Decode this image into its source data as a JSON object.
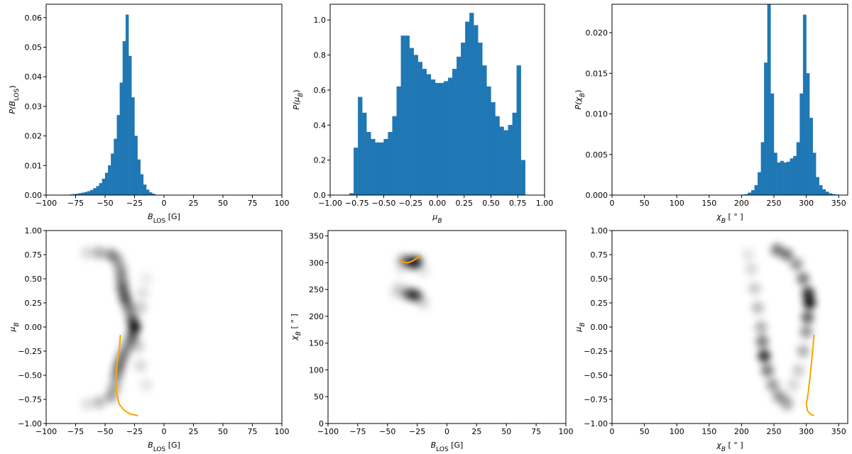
{
  "chart_data": [
    {
      "type": "histogram",
      "color": "#1f77b4",
      "xlabel": [
        "B",
        "LOS",
        " [G]"
      ],
      "ylabel": [
        "P(B",
        "LOS",
        ")"
      ],
      "xlim": [
        -100,
        100
      ],
      "ylim": [
        0,
        0.0645
      ],
      "xticks": [
        {
          "value": -100,
          "label": "−100"
        },
        {
          "value": -75,
          "label": "−75"
        },
        {
          "value": -50,
          "label": "−50"
        },
        {
          "value": -25,
          "label": "−25"
        },
        0,
        25,
        50,
        75,
        100
      ],
      "yticks": [
        {
          "value": 0,
          "label": "0.00"
        },
        {
          "value": 0.01,
          "label": "0.01"
        },
        {
          "value": 0.02,
          "label": "0.02"
        },
        {
          "value": 0.03,
          "label": "0.03"
        },
        {
          "value": 0.04,
          "label": "0.04"
        },
        {
          "value": 0.05,
          "label": "0.05"
        },
        {
          "value": 0.06,
          "label": "0.06"
        }
      ],
      "bins": [
        -80,
        -77.5,
        -75,
        -72.5,
        -70,
        -67.5,
        -65,
        -62.5,
        -60,
        -57.5,
        -55,
        -52.5,
        -50,
        -47.5,
        -45,
        -42.5,
        -40,
        -37.5,
        -35,
        -32.5,
        -30,
        -27.5,
        -25,
        -22.5,
        -20,
        -17.5,
        -15,
        -12.5,
        -10,
        -7.5,
        -5
      ],
      "values": [
        0.0002,
        0.0003,
        0.0004,
        0.0006,
        0.0008,
        0.001,
        0.0013,
        0.0017,
        0.0023,
        0.003,
        0.004,
        0.0055,
        0.0075,
        0.01,
        0.014,
        0.019,
        0.027,
        0.038,
        0.052,
        0.061,
        0.047,
        0.033,
        0.02,
        0.012,
        0.007,
        0.0035,
        0.0018,
        0.0009,
        0.0004,
        0.0001
      ]
    },
    {
      "type": "histogram",
      "color": "#1f77b4",
      "xlabel": [
        "μ",
        "B"
      ],
      "ylabel": [
        "P(μ",
        "B",
        ")"
      ],
      "xlim": [
        -1,
        1
      ],
      "ylim": [
        0,
        1.09
      ],
      "xticks": [
        {
          "value": -1,
          "label": "−1.00"
        },
        {
          "value": -0.75,
          "label": "−0.75"
        },
        {
          "value": -0.5,
          "label": "−0.50"
        },
        {
          "value": -0.25,
          "label": "−0.25"
        },
        {
          "value": 0,
          "label": "0.00"
        },
        {
          "value": 0.25,
          "label": "0.25"
        },
        {
          "value": 0.5,
          "label": "0.50"
        },
        {
          "value": 0.75,
          "label": "0.75"
        },
        {
          "value": 1,
          "label": "1.00"
        }
      ],
      "yticks": [
        {
          "value": 0,
          "label": "0.0"
        },
        0.2,
        0.4,
        0.6,
        0.8,
        {
          "value": 1,
          "label": "1.0"
        }
      ],
      "bins": [
        -0.82,
        -0.78,
        -0.74,
        -0.7,
        -0.66,
        -0.62,
        -0.58,
        -0.54,
        -0.5,
        -0.46,
        -0.42,
        -0.38,
        -0.34,
        -0.3,
        -0.26,
        -0.22,
        -0.18,
        -0.14,
        -0.1,
        -0.06,
        -0.02,
        0.02,
        0.06,
        0.1,
        0.14,
        0.18,
        0.22,
        0.26,
        0.3,
        0.34,
        0.38,
        0.42,
        0.46,
        0.5,
        0.54,
        0.58,
        0.62,
        0.66,
        0.7,
        0.74,
        0.78,
        0.82
      ],
      "values": [
        0.01,
        0.27,
        0.56,
        0.47,
        0.36,
        0.32,
        0.3,
        0.3,
        0.32,
        0.36,
        0.45,
        0.62,
        0.91,
        0.91,
        0.84,
        0.8,
        0.76,
        0.72,
        0.69,
        0.66,
        0.64,
        0.64,
        0.65,
        0.67,
        0.72,
        0.79,
        0.87,
        0.99,
        1.04,
        0.97,
        0.87,
        0.74,
        0.62,
        0.53,
        0.45,
        0.39,
        0.37,
        0.4,
        0.47,
        0.74,
        0.2
      ]
    },
    {
      "type": "histogram",
      "color": "#1f77b4",
      "xlabel": [
        "χ",
        "B",
        " [ ° ]"
      ],
      "ylabel": [
        "P(χ",
        "B",
        ")"
      ],
      "xlim": [
        0,
        364
      ],
      "ylim": [
        0,
        0.0235
      ],
      "xticks": [
        0,
        50,
        100,
        150,
        200,
        250,
        300,
        350
      ],
      "yticks": [
        {
          "value": 0,
          "label": "0.000"
        },
        0.005,
        {
          "value": 0.01,
          "label": "0.010"
        },
        0.015,
        {
          "value": 0.02,
          "label": "0.020"
        }
      ],
      "bins": [
        200,
        205,
        210,
        215,
        220,
        225,
        230,
        235,
        240,
        245,
        250,
        255,
        260,
        265,
        270,
        275,
        280,
        285,
        290,
        295,
        300,
        305,
        310,
        315,
        320,
        325,
        330,
        335,
        340,
        345,
        350
      ],
      "values": [
        5e-05,
        0.0001,
        0.0003,
        0.0006,
        0.0012,
        0.0028,
        0.0065,
        0.0163,
        0.0235,
        0.0125,
        0.0052,
        0.004,
        0.0042,
        0.004,
        0.0041,
        0.0045,
        0.0048,
        0.0065,
        0.0125,
        0.0222,
        0.015,
        0.0095,
        0.0052,
        0.0022,
        0.0012,
        0.0007,
        0.0004,
        0.0002,
        0.0001,
        5e-05
      ]
    },
    {
      "type": "density",
      "xlabel": [
        "B",
        "LOS",
        " [G]"
      ],
      "ylabel": [
        "μ",
        "B"
      ],
      "xlim": [
        -100,
        100
      ],
      "ylim": [
        -1,
        1
      ],
      "xticks": [
        {
          "value": -100,
          "label": "−100"
        },
        {
          "value": -75,
          "label": "−75"
        },
        {
          "value": -50,
          "label": "−50"
        },
        {
          "value": -25,
          "label": "−25"
        },
        0,
        25,
        50,
        75,
        100
      ],
      "yticks": [
        {
          "value": -1,
          "label": "−1.00"
        },
        {
          "value": -0.75,
          "label": "−0.75"
        },
        {
          "value": -0.5,
          "label": "−0.50"
        },
        {
          "value": -0.25,
          "label": "−0.25"
        },
        {
          "value": 0,
          "label": "0.00"
        },
        {
          "value": 0.25,
          "label": "0.25"
        },
        {
          "value": 0.5,
          "label": "0.50"
        },
        {
          "value": 0.75,
          "label": "0.75"
        },
        {
          "value": 1,
          "label": "1.00"
        }
      ],
      "density": {
        "x": [
          -65,
          -55,
          -45,
          -40,
          -37,
          -36,
          -35,
          -33,
          -30,
          -27,
          -25,
          -27,
          -31,
          -35,
          -38,
          -40,
          -42,
          -45,
          -55,
          -65,
          -20,
          -18,
          -15,
          -22,
          -20,
          -15
        ],
        "y": [
          0.77,
          0.77,
          0.75,
          0.7,
          0.6,
          0.5,
          0.4,
          0.3,
          0.2,
          0.08,
          0,
          -0.1,
          -0.2,
          -0.3,
          -0.4,
          -0.5,
          -0.62,
          -0.72,
          -0.78,
          -0.8,
          0.2,
          0.35,
          0.5,
          -0.2,
          -0.4,
          -0.6
        ],
        "weights": [
          0.15,
          0.3,
          0.4,
          0.35,
          0.4,
          0.45,
          0.6,
          0.65,
          0.5,
          0.6,
          0.9,
          0.6,
          0.45,
          0.5,
          0.55,
          0.45,
          0.35,
          0.35,
          0.25,
          0.12,
          0.2,
          0.12,
          0.08,
          0.2,
          0.15,
          0.1
        ]
      },
      "series": [
        {
          "color": "#ffa500",
          "x": [
            -37,
            -38,
            -40,
            -41,
            -40,
            -38,
            -34,
            -29,
            -22
          ],
          "y": [
            -0.08,
            -0.25,
            -0.4,
            -0.55,
            -0.7,
            -0.8,
            -0.86,
            -0.9,
            -0.92
          ]
        }
      ]
    },
    {
      "type": "density",
      "xlabel": [
        "B",
        "LOS",
        " [G]"
      ],
      "ylabel": [
        "χ",
        "B",
        " [ ° ]"
      ],
      "xlim": [
        -100,
        100
      ],
      "ylim": [
        0,
        360
      ],
      "xticks": [
        {
          "value": -100,
          "label": "−100"
        },
        {
          "value": -75,
          "label": "−75"
        },
        {
          "value": -50,
          "label": "−50"
        },
        {
          "value": -25,
          "label": "−25"
        },
        0,
        25,
        50,
        75,
        100
      ],
      "yticks": [
        0,
        50,
        100,
        150,
        200,
        250,
        300,
        350
      ],
      "density": {
        "x": [
          -38,
          -33,
          -28,
          -25,
          -33,
          -28,
          -25,
          -40,
          -20,
          -20,
          -42,
          -38
        ],
        "y": [
          305,
          303,
          300,
          302,
          242,
          240,
          238,
          255,
          285,
          225,
          245,
          290
        ],
        "weights": [
          0.2,
          0.5,
          0.8,
          0.5,
          0.5,
          0.6,
          0.4,
          0.1,
          0.1,
          0.15,
          0.15,
          0.1
        ]
      },
      "series": [
        {
          "color": "#ffa500",
          "x": [
            -40,
            -37,
            -33,
            -29,
            -25,
            -22
          ],
          "y": [
            306,
            301,
            300,
            303,
            309,
            313
          ]
        }
      ]
    },
    {
      "type": "density",
      "xlabel": [
        "χ",
        "B",
        " [ ° ]"
      ],
      "ylabel": [
        "μ",
        "B"
      ],
      "xlim": [
        0,
        364
      ],
      "ylim": [
        -1,
        1
      ],
      "xticks": [
        0,
        50,
        100,
        150,
        200,
        250,
        300,
        350
      ],
      "yticks": [
        {
          "value": -1,
          "label": "−1.00"
        },
        {
          "value": -0.75,
          "label": "−0.75"
        },
        {
          "value": -0.5,
          "label": "−0.50"
        },
        {
          "value": -0.25,
          "label": "−0.25"
        },
        {
          "value": 0,
          "label": "0.00"
        },
        {
          "value": 0.25,
          "label": "0.25"
        },
        {
          "value": 0.5,
          "label": "0.50"
        },
        {
          "value": 0.75,
          "label": "0.75"
        },
        {
          "value": 1,
          "label": "1.00"
        }
      ],
      "density": {
        "x": [
          210,
          215,
          220,
          225,
          230,
          232,
          235,
          240,
          248,
          258,
          270,
          255,
          270,
          285,
          295,
          303,
          305,
          302,
          300,
          295,
          288,
          280,
          270
        ],
        "y": [
          0.75,
          0.6,
          0.4,
          0.2,
          0,
          -0.15,
          -0.3,
          -0.45,
          -0.6,
          -0.72,
          -0.8,
          0.8,
          0.75,
          0.65,
          0.5,
          0.35,
          0.25,
          0.1,
          -0.05,
          -0.25,
          -0.45,
          -0.6,
          -0.75
        ],
        "weights": [
          0.1,
          0.15,
          0.2,
          0.25,
          0.3,
          0.5,
          0.8,
          0.5,
          0.4,
          0.4,
          0.3,
          0.5,
          0.5,
          0.4,
          0.5,
          0.8,
          0.9,
          0.6,
          0.4,
          0.3,
          0.2,
          0.15,
          0.1
        ]
      },
      "series": [
        {
          "color": "#ffa500",
          "x": [
            312,
            309,
            306,
            303,
            300,
            302,
            306,
            312
          ],
          "y": [
            -0.08,
            -0.3,
            -0.5,
            -0.68,
            -0.8,
            -0.87,
            -0.9,
            -0.92
          ]
        }
      ]
    }
  ]
}
